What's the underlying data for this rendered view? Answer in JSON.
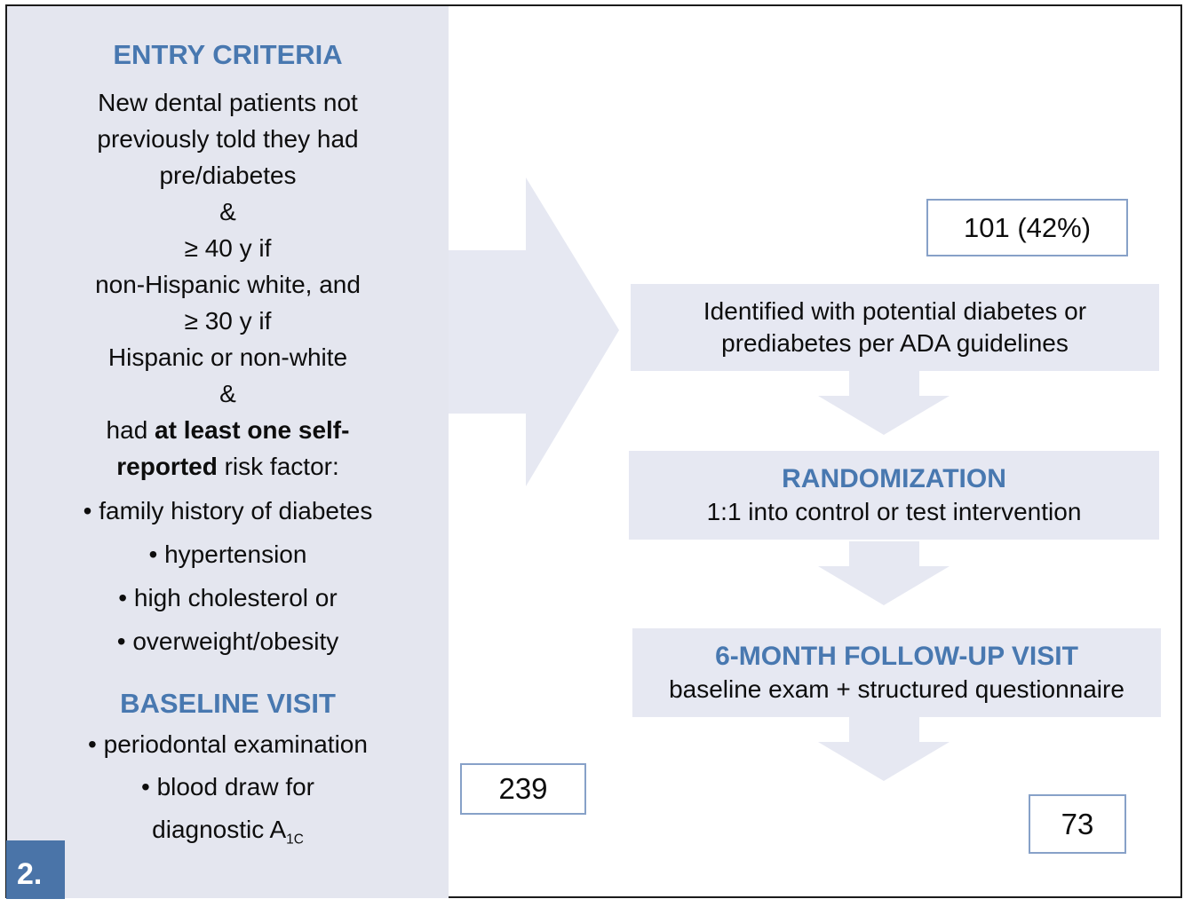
{
  "figure": {
    "number_label": "2."
  },
  "entry_panel": {
    "title": "ENTRY CRITERIA",
    "lines": [
      "New dental patients not",
      "previously told they had",
      "pre/diabetes",
      "&",
      "≥ 40 y if",
      "non-Hispanic white, and",
      "≥ 30 y if",
      "Hispanic or non-white",
      "&"
    ],
    "risk_intro": {
      "pre": "had ",
      "bold1": "at least one self-",
      "bold2": "reported",
      "post": " risk factor:"
    },
    "bullets": [
      "• family history of diabetes",
      "• hypertension",
      "• high cholesterol or",
      "• overweight/obesity"
    ]
  },
  "baseline_panel": {
    "title": "BASELINE VISIT",
    "bullets": [
      "• periodontal examination",
      "• blood draw for"
    ],
    "last_line_pre": "diagnostic A",
    "last_line_sub": "1C"
  },
  "flow": {
    "identified_count": "101 (42%)",
    "identified_line1": "Identified with potential diabetes or",
    "identified_line2": "prediabetes per ADA guidelines",
    "randomization_title": "RANDOMIZATION",
    "randomization_subtitle": "1:1 into control or test intervention",
    "followup_title": "6-MONTH FOLLOW-UP VISIT",
    "followup_subtitle": "baseline exam + structured questionnaire",
    "enrolled_count": "239",
    "followup_count": "73"
  },
  "colors": {
    "accent_blue": "#4878b0",
    "panel_bg": "#e4e6ef",
    "arrow_box_bg": "#e6e8f2",
    "badge_bg": "#4a74a8",
    "count_box_border": "#87a1c8",
    "frame_border": "#1b1b1b"
  }
}
